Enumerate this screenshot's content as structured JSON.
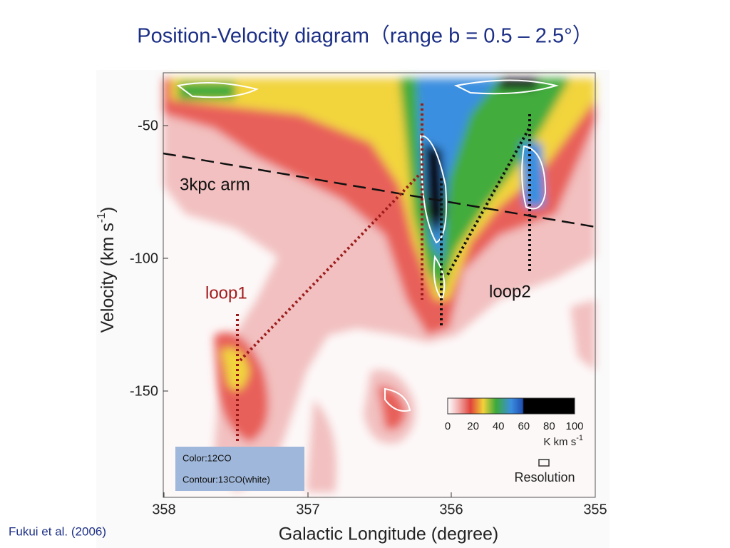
{
  "title": "Position-Velocity diagram（range b = 0.5 – 2.5°）",
  "figure": {
    "x_label": "Galactic Longitude (degree)",
    "y_label": {
      "text": "Velocity (km s",
      "sup": "-1",
      "end": ")"
    },
    "x_ticks": [
      358,
      357,
      356,
      355
    ],
    "y_ticks": [
      -50,
      -100,
      -150
    ],
    "annotations": {
      "arm": "3kpc arm",
      "loop1": "loop1",
      "loop2": "loop2"
    },
    "colorbar": {
      "ticks": [
        0,
        20,
        40,
        60,
        80,
        100
      ],
      "unit": {
        "text": "K km s",
        "sup": "-1"
      },
      "resolution": "Resolution"
    },
    "legend": [
      "Color:12CO",
      "Contour:13CO(white)"
    ]
  },
  "citation": "Fukui et al. (2006)"
}
